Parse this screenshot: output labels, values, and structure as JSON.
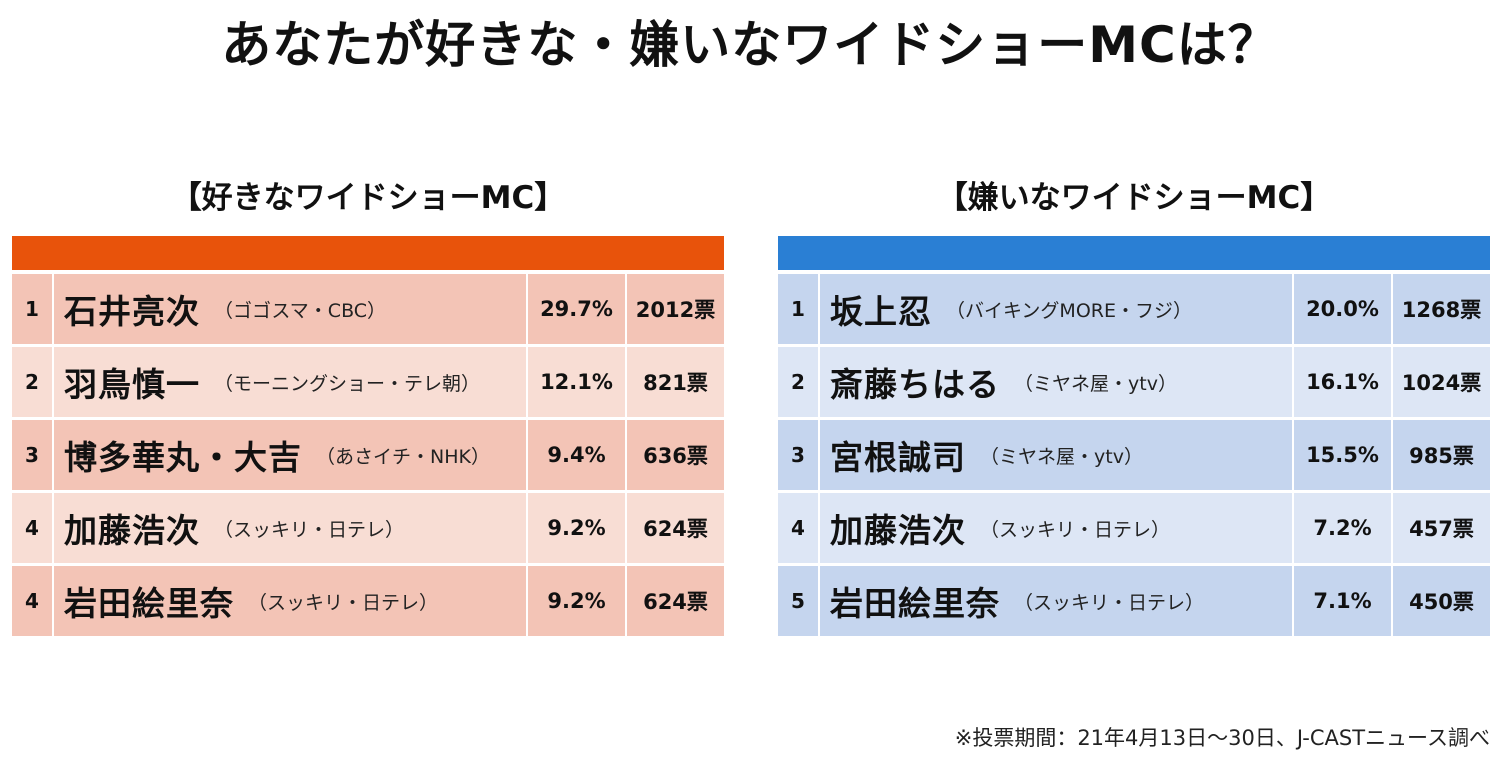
{
  "title": "あなたが好きな・嫌いなワイドショーMCは？",
  "colors": {
    "like_header": "#E8530B",
    "like_row_dark": "#F3C4B6",
    "like_row_light": "#F8DDD4",
    "dislike_header": "#2A7FD4",
    "dislike_row_dark": "#C5D5EE",
    "dislike_row_light": "#DDE6F5"
  },
  "like": {
    "title": "【好きなワイドショーMC】",
    "rows": [
      {
        "rank": "1",
        "name": "石井亮次",
        "show": "（ゴゴスマ・CBC）",
        "percent": "29.7%",
        "votes": "2012票"
      },
      {
        "rank": "2",
        "name": "羽鳥慎一",
        "show": "（モーニングショー・テレ朝）",
        "percent": "12.1%",
        "votes": "821票"
      },
      {
        "rank": "3",
        "name": "博多華丸・大吉",
        "show": "（あさイチ・NHK）",
        "percent": "9.4%",
        "votes": "636票"
      },
      {
        "rank": "4",
        "name": "加藤浩次",
        "show": "（スッキリ・日テレ）",
        "percent": "9.2%",
        "votes": "624票"
      },
      {
        "rank": "4",
        "name": "岩田絵里奈",
        "show": "（スッキリ・日テレ）",
        "percent": "9.2%",
        "votes": "624票"
      }
    ]
  },
  "dislike": {
    "title": "【嫌いなワイドショーMC】",
    "rows": [
      {
        "rank": "1",
        "name": "坂上忍",
        "show": "（バイキングMORE・フジ）",
        "percent": "20.0%",
        "votes": "1268票"
      },
      {
        "rank": "2",
        "name": "斎藤ちはる",
        "show": "（ミヤネ屋・ytv）",
        "percent": "16.1%",
        "votes": "1024票"
      },
      {
        "rank": "3",
        "name": "宮根誠司",
        "show": "（ミヤネ屋・ytv）",
        "percent": "15.5%",
        "votes": "985票"
      },
      {
        "rank": "4",
        "name": "加藤浩次",
        "show": "（スッキリ・日テレ）",
        "percent": "7.2%",
        "votes": "457票"
      },
      {
        "rank": "5",
        "name": "岩田絵里奈",
        "show": "（スッキリ・日テレ）",
        "percent": "7.1%",
        "votes": "450票"
      }
    ]
  },
  "footnote": "※投票期間：21年4月13日〜30日、J-CASTニュース調べ"
}
